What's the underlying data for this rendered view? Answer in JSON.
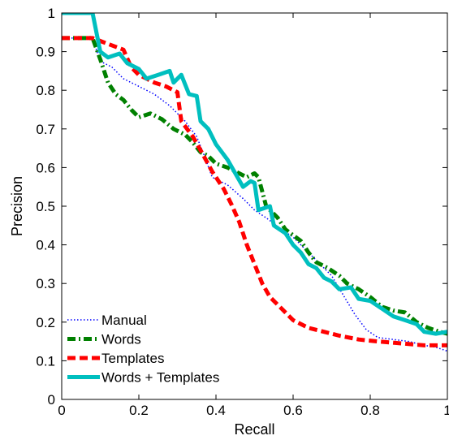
{
  "chart_data": {
    "type": "line",
    "xlabel": "Recall",
    "ylabel": "Precision",
    "xlim": [
      0,
      1
    ],
    "ylim": [
      0,
      1
    ],
    "xticks": [
      0,
      0.2,
      0.4,
      0.6,
      0.8,
      1
    ],
    "xtick_labels": [
      "0",
      "0.2",
      "0.4",
      "0.6",
      "0.8",
      "1"
    ],
    "yticks": [
      0,
      0.1,
      0.2,
      0.3,
      0.4,
      0.5,
      0.6,
      0.7,
      0.8,
      0.9,
      1
    ],
    "ytick_labels": [
      "0",
      "0.1",
      "0.2",
      "0.3",
      "0.4",
      "0.5",
      "0.6",
      "0.7",
      "0.8",
      "0.9",
      "1"
    ],
    "grid": false,
    "legend_position": "bottom-left",
    "series": [
      {
        "name": "Manual",
        "color": "#0000ff",
        "line_style": "dotted",
        "points": [
          [
            0.0,
            0.935
          ],
          [
            0.08,
            0.935
          ],
          [
            0.1,
            0.875
          ],
          [
            0.13,
            0.86
          ],
          [
            0.16,
            0.83
          ],
          [
            0.2,
            0.81
          ],
          [
            0.24,
            0.79
          ],
          [
            0.28,
            0.76
          ],
          [
            0.32,
            0.72
          ],
          [
            0.35,
            0.68
          ],
          [
            0.37,
            0.63
          ],
          [
            0.39,
            0.575
          ],
          [
            0.43,
            0.555
          ],
          [
            0.47,
            0.52
          ],
          [
            0.5,
            0.49
          ],
          [
            0.53,
            0.47
          ],
          [
            0.57,
            0.44
          ],
          [
            0.6,
            0.42
          ],
          [
            0.63,
            0.39
          ],
          [
            0.66,
            0.36
          ],
          [
            0.7,
            0.32
          ],
          [
            0.73,
            0.27
          ],
          [
            0.76,
            0.22
          ],
          [
            0.79,
            0.18
          ],
          [
            0.82,
            0.16
          ],
          [
            0.86,
            0.155
          ],
          [
            0.9,
            0.15
          ],
          [
            0.94,
            0.14
          ],
          [
            0.97,
            0.135
          ],
          [
            1.0,
            0.125
          ]
        ]
      },
      {
        "name": "Words",
        "color": "#008000",
        "line_style": "dash-dot",
        "points": [
          [
            0.0,
            0.935
          ],
          [
            0.08,
            0.935
          ],
          [
            0.1,
            0.88
          ],
          [
            0.12,
            0.82
          ],
          [
            0.14,
            0.79
          ],
          [
            0.16,
            0.775
          ],
          [
            0.18,
            0.75
          ],
          [
            0.2,
            0.73
          ],
          [
            0.23,
            0.74
          ],
          [
            0.26,
            0.725
          ],
          [
            0.29,
            0.7
          ],
          [
            0.32,
            0.685
          ],
          [
            0.34,
            0.665
          ],
          [
            0.36,
            0.64
          ],
          [
            0.38,
            0.63
          ],
          [
            0.4,
            0.61
          ],
          [
            0.43,
            0.6
          ],
          [
            0.46,
            0.585
          ],
          [
            0.48,
            0.575
          ],
          [
            0.5,
            0.585
          ],
          [
            0.51,
            0.575
          ],
          [
            0.53,
            0.5
          ],
          [
            0.56,
            0.47
          ],
          [
            0.58,
            0.44
          ],
          [
            0.6,
            0.425
          ],
          [
            0.62,
            0.41
          ],
          [
            0.64,
            0.38
          ],
          [
            0.66,
            0.355
          ],
          [
            0.69,
            0.34
          ],
          [
            0.72,
            0.32
          ],
          [
            0.74,
            0.3
          ],
          [
            0.77,
            0.285
          ],
          [
            0.8,
            0.265
          ],
          [
            0.83,
            0.24
          ],
          [
            0.86,
            0.23
          ],
          [
            0.89,
            0.225
          ],
          [
            0.92,
            0.2
          ],
          [
            0.95,
            0.185
          ],
          [
            0.98,
            0.175
          ],
          [
            1.0,
            0.17
          ]
        ]
      },
      {
        "name": "Templates",
        "color": "#ff0000",
        "line_style": "dashed",
        "points": [
          [
            0.0,
            0.935
          ],
          [
            0.08,
            0.935
          ],
          [
            0.12,
            0.92
          ],
          [
            0.16,
            0.905
          ],
          [
            0.18,
            0.86
          ],
          [
            0.2,
            0.84
          ],
          [
            0.22,
            0.83
          ],
          [
            0.24,
            0.82
          ],
          [
            0.27,
            0.81
          ],
          [
            0.3,
            0.795
          ],
          [
            0.31,
            0.72
          ],
          [
            0.34,
            0.68
          ],
          [
            0.36,
            0.645
          ],
          [
            0.39,
            0.59
          ],
          [
            0.42,
            0.545
          ],
          [
            0.44,
            0.505
          ],
          [
            0.46,
            0.46
          ],
          [
            0.48,
            0.4
          ],
          [
            0.5,
            0.35
          ],
          [
            0.52,
            0.3
          ],
          [
            0.54,
            0.265
          ],
          [
            0.57,
            0.235
          ],
          [
            0.6,
            0.205
          ],
          [
            0.64,
            0.185
          ],
          [
            0.68,
            0.175
          ],
          [
            0.72,
            0.165
          ],
          [
            0.77,
            0.155
          ],
          [
            0.82,
            0.15
          ],
          [
            0.88,
            0.145
          ],
          [
            0.94,
            0.14
          ],
          [
            1.0,
            0.14
          ]
        ]
      },
      {
        "name": "Words + Templates",
        "color": "#00bfbf",
        "line_style": "solid",
        "points": [
          [
            0.0,
            1.0
          ],
          [
            0.08,
            1.0
          ],
          [
            0.1,
            0.9
          ],
          [
            0.12,
            0.885
          ],
          [
            0.15,
            0.895
          ],
          [
            0.17,
            0.87
          ],
          [
            0.2,
            0.855
          ],
          [
            0.22,
            0.83
          ],
          [
            0.25,
            0.84
          ],
          [
            0.28,
            0.85
          ],
          [
            0.29,
            0.82
          ],
          [
            0.31,
            0.84
          ],
          [
            0.33,
            0.79
          ],
          [
            0.35,
            0.785
          ],
          [
            0.36,
            0.72
          ],
          [
            0.38,
            0.7
          ],
          [
            0.4,
            0.66
          ],
          [
            0.43,
            0.62
          ],
          [
            0.45,
            0.585
          ],
          [
            0.47,
            0.55
          ],
          [
            0.49,
            0.565
          ],
          [
            0.5,
            0.56
          ],
          [
            0.51,
            0.49
          ],
          [
            0.54,
            0.5
          ],
          [
            0.55,
            0.45
          ],
          [
            0.58,
            0.43
          ],
          [
            0.6,
            0.4
          ],
          [
            0.62,
            0.38
          ],
          [
            0.64,
            0.35
          ],
          [
            0.66,
            0.34
          ],
          [
            0.68,
            0.315
          ],
          [
            0.7,
            0.305
          ],
          [
            0.72,
            0.285
          ],
          [
            0.75,
            0.29
          ],
          [
            0.77,
            0.26
          ],
          [
            0.8,
            0.255
          ],
          [
            0.83,
            0.235
          ],
          [
            0.86,
            0.215
          ],
          [
            0.89,
            0.205
          ],
          [
            0.92,
            0.195
          ],
          [
            0.94,
            0.175
          ],
          [
            0.97,
            0.17
          ],
          [
            1.0,
            0.175
          ]
        ]
      }
    ]
  }
}
